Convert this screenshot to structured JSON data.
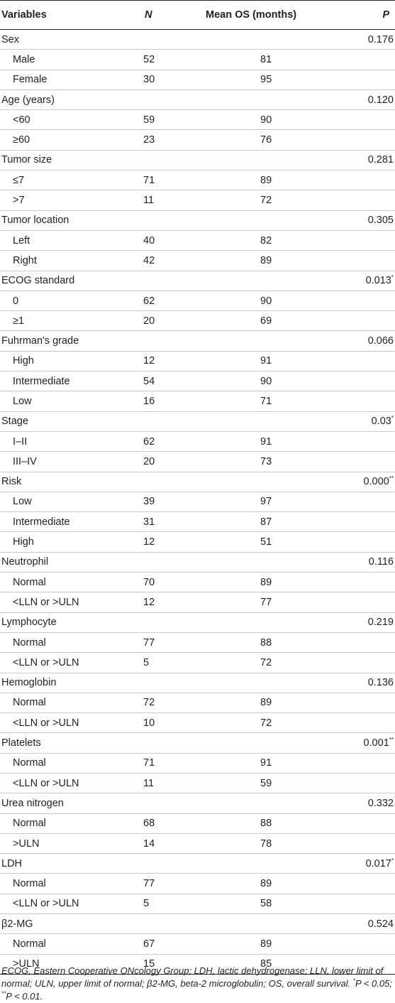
{
  "headers": {
    "variables": "Variables",
    "n": "N",
    "mean_os": "Mean OS (months)",
    "p": "P"
  },
  "rows": [
    {
      "label": "Sex",
      "n": "",
      "mean": "",
      "p": "0.176",
      "sub": false
    },
    {
      "label": "Male",
      "n": "52",
      "mean": "81",
      "p": "",
      "sub": true
    },
    {
      "label": "Female",
      "n": "30",
      "mean": "95",
      "p": "",
      "sub": true
    },
    {
      "label": "Age (years)",
      "n": "",
      "mean": "",
      "p": "0.120",
      "sub": false
    },
    {
      "label": "<60",
      "n": "59",
      "mean": "90",
      "p": "",
      "sub": true
    },
    {
      "label": "≥60",
      "n": "23",
      "mean": "76",
      "p": "",
      "sub": true
    },
    {
      "label": "Tumor size",
      "n": "",
      "mean": "",
      "p": "0.281",
      "sub": false
    },
    {
      "label": "≤7",
      "n": "71",
      "mean": "89",
      "p": "",
      "sub": true
    },
    {
      "label": ">7",
      "n": "11",
      "mean": "72",
      "p": "",
      "sub": true
    },
    {
      "label": "Tumor location",
      "n": "",
      "mean": "",
      "p": "0.305",
      "sub": false
    },
    {
      "label": "Left",
      "n": "40",
      "mean": "82",
      "p": "",
      "sub": true
    },
    {
      "label": "Right",
      "n": "42",
      "mean": "89",
      "p": "",
      "sub": true
    },
    {
      "label": "ECOG standard",
      "n": "",
      "mean": "",
      "p": "0.013*",
      "sub": false
    },
    {
      "label": "0",
      "n": "62",
      "mean": "90",
      "p": "",
      "sub": true
    },
    {
      "label": "≥1",
      "n": "20",
      "mean": "69",
      "p": "",
      "sub": true
    },
    {
      "label": "Fuhrman's grade",
      "n": "",
      "mean": "",
      "p": "0.066",
      "sub": false
    },
    {
      "label": "High",
      "n": "12",
      "mean": "91",
      "p": "",
      "sub": true
    },
    {
      "label": "Intermediate",
      "n": "54",
      "mean": "90",
      "p": "",
      "sub": true
    },
    {
      "label": "Low",
      "n": "16",
      "mean": "71",
      "p": "",
      "sub": true
    },
    {
      "label": "Stage",
      "n": "",
      "mean": "",
      "p": "0.03*",
      "sub": false
    },
    {
      "label": "I–II",
      "n": "62",
      "mean": "91",
      "p": "",
      "sub": true
    },
    {
      "label": "III–IV",
      "n": "20",
      "mean": "73",
      "p": "",
      "sub": true
    },
    {
      "label": "Risk",
      "n": "",
      "mean": "",
      "p": "0.000**",
      "sub": false
    },
    {
      "label": "Low",
      "n": "39",
      "mean": "97",
      "p": "",
      "sub": true
    },
    {
      "label": "Intermediate",
      "n": "31",
      "mean": "87",
      "p": "",
      "sub": true
    },
    {
      "label": "High",
      "n": "12",
      "mean": "51",
      "p": "",
      "sub": true
    },
    {
      "label": "Neutrophil",
      "n": "",
      "mean": "",
      "p": "0.116",
      "sub": false
    },
    {
      "label": "Normal",
      "n": "70",
      "mean": "89",
      "p": "",
      "sub": true
    },
    {
      "label": "<LLN or >ULN",
      "n": "12",
      "mean": "77",
      "p": "",
      "sub": true
    },
    {
      "label": "Lymphocyte",
      "n": "",
      "mean": "",
      "p": "0.219",
      "sub": false
    },
    {
      "label": "Normal",
      "n": "77",
      "mean": "88",
      "p": "",
      "sub": true
    },
    {
      "label": "<LLN or >ULN",
      "n": "5",
      "mean": "72",
      "p": "",
      "sub": true
    },
    {
      "label": "Hemoglobin",
      "n": "",
      "mean": "",
      "p": "0.136",
      "sub": false
    },
    {
      "label": "Normal",
      "n": "72",
      "mean": "89",
      "p": "",
      "sub": true
    },
    {
      "label": "<LLN or >ULN",
      "n": "10",
      "mean": "72",
      "p": "",
      "sub": true
    },
    {
      "label": "Platelets",
      "n": "",
      "mean": "",
      "p": "0.001**",
      "sub": false
    },
    {
      "label": "Normal",
      "n": "71",
      "mean": "91",
      "p": "",
      "sub": true
    },
    {
      "label": "<LLN or >ULN",
      "n": "11",
      "mean": "59",
      "p": "",
      "sub": true
    },
    {
      "label": "Urea nitrogen",
      "n": "",
      "mean": "",
      "p": "0.332",
      "sub": false
    },
    {
      "label": "Normal",
      "n": "68",
      "mean": "88",
      "p": "",
      "sub": true
    },
    {
      "label": ">ULN",
      "n": "14",
      "mean": "78",
      "p": "",
      "sub": true
    },
    {
      "label": "LDH",
      "n": "",
      "mean": "",
      "p": "0.017*",
      "sub": false
    },
    {
      "label": "Normal",
      "n": "77",
      "mean": "89",
      "p": "",
      "sub": true
    },
    {
      "label": "<LLN or >ULN",
      "n": "5",
      "mean": "58",
      "p": "",
      "sub": true
    },
    {
      "label": "β2-MG",
      "n": "",
      "mean": "",
      "p": "0.524",
      "sub": false
    },
    {
      "label": "Normal",
      "n": "67",
      "mean": "89",
      "p": "",
      "sub": true
    },
    {
      "label": ">ULN",
      "n": "15",
      "mean": "85",
      "p": "",
      "sub": true
    }
  ],
  "footnote": {
    "text": "ECOG, Eastern Cooperative ONcology Group; LDH, lactic dehydrogenase; LLN, lower limit of normal; ULN, upper limit of normal; β2-MG, beta-2 microglobulin; OS, overall survival.",
    "sig1_mark": "*",
    "sig1_text": "P < 0.05;",
    "sig2_mark": "**",
    "sig2_text": "P < 0.01."
  }
}
